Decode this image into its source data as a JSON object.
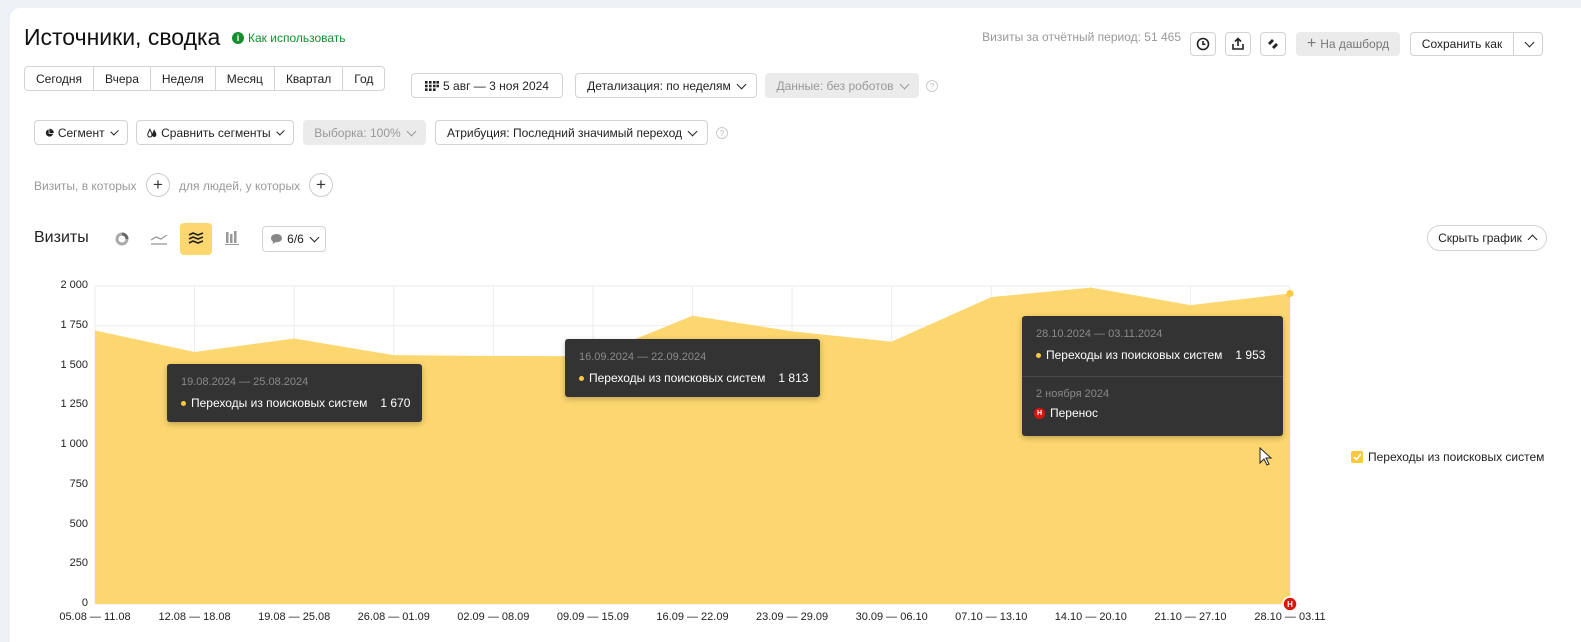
{
  "header": {
    "title": "Источники, сводка",
    "howto": "Как использовать",
    "visits_period": "Визиты за отчётный период: 51 465",
    "dashboard": "На дашборд",
    "save_as": "Сохранить как"
  },
  "periods": [
    "Сегодня",
    "Вчера",
    "Неделя",
    "Месяц",
    "Квартал",
    "Год"
  ],
  "filters": {
    "date_range": "5 авг — 3 ноя 2024",
    "detail": "Детализация: по неделям",
    "data": "Данные: без роботов",
    "segment": "Сегмент",
    "compare": "Сравнить сегменты",
    "sample": "Выборка: 100%",
    "attribution": "Атрибуция: Последний значимый переход"
  },
  "conditions": {
    "visits_label": "Визиты, в которых",
    "people_label": "для людей, у которых"
  },
  "chart_header": {
    "title": "Визиты",
    "series_count": "6/6",
    "hide": "Скрыть график"
  },
  "legend": {
    "label": "Переходы из поисковых систем"
  },
  "tooltips": [
    {
      "date": "19.08.2024 — 25.08.2024",
      "series": "Переходы из поисковых систем",
      "value": "1 670"
    },
    {
      "date": "16.09.2024 — 22.09.2024",
      "series": "Переходы из поисковых систем",
      "value": "1 813"
    },
    {
      "date": "28.10.2024 — 03.11.2024",
      "series": "Переходы из поисковых систем",
      "value": "1 953",
      "note_date": "2 ноября 2024",
      "note": "Перенос"
    }
  ],
  "colors": {
    "area": "#fcd66e",
    "accent": "#fcc83e",
    "howto": "#13902d",
    "marker": "#d4170d"
  },
  "chart_data": {
    "type": "area",
    "x": [
      "05.08 — 11.08",
      "12.08 — 18.08",
      "19.08 — 25.08",
      "26.08 — 01.09",
      "02.09 — 08.09",
      "09.09 — 15.09",
      "16.09 — 22.09",
      "23.09 — 29.09",
      "30.09 — 06.10",
      "07.10 — 13.10",
      "14.10 — 20.10",
      "21.10 — 27.10",
      "28.10 — 03.11"
    ],
    "series": [
      {
        "name": "Переходы из поисковых систем",
        "values": [
          1720,
          1585,
          1670,
          1565,
          1560,
          1558,
          1813,
          1715,
          1650,
          1930,
          1990,
          1880,
          1953
        ]
      }
    ],
    "yticks": [
      "0",
      "250",
      "500",
      "750",
      "1 000",
      "1 250",
      "1 500",
      "1 750",
      "2 000"
    ],
    "ylim": [
      0,
      2000
    ],
    "grid": true,
    "legend": "right",
    "annotation_marker": "Н"
  }
}
